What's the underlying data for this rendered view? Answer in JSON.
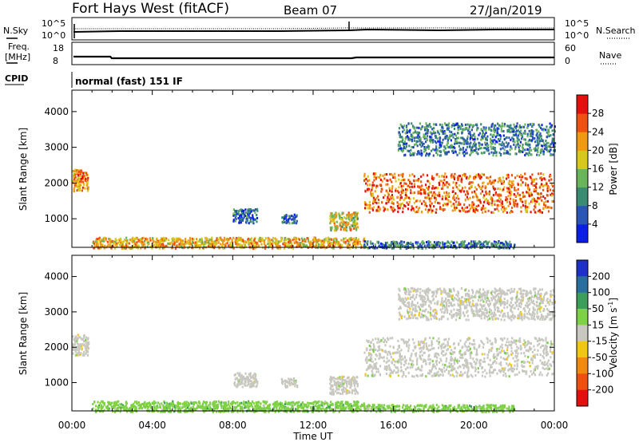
{
  "header": {
    "station": "Fort Hays West (fitACF)",
    "beam": "Beam 07",
    "date": "27/Jan/2019"
  },
  "noise_panel": {
    "left_label": "N.Sky",
    "right_label": "N.Search",
    "ticks": [
      "10^5",
      "10^0"
    ]
  },
  "freq_panel": {
    "left_label_1": "Freq.",
    "left_label_2": "[MHz]",
    "left_ticks": [
      "18",
      "8"
    ],
    "right_label": "Nave",
    "right_ticks": [
      "60",
      "0"
    ]
  },
  "cpid": {
    "label": "CPID",
    "mode": "normal (fast) 151 IF"
  },
  "chart_data": [
    {
      "type": "heatmap",
      "name": "power",
      "ylabel": "Slant Range [km]",
      "xlabel": "Time UT",
      "x_ticks": [
        "00:00",
        "04:00",
        "08:00",
        "12:00",
        "16:00",
        "20:00",
        "00:00"
      ],
      "y_ticks": [
        1000,
        2000,
        3000,
        4000
      ],
      "ylim": [
        200,
        4600
      ],
      "xlim_hours": [
        0,
        24
      ],
      "colorbar_label": "Power [dB]",
      "colorbar_ticks": [
        4,
        8,
        12,
        16,
        20,
        24,
        28
      ],
      "colors": [
        "#0a1ee6",
        "#2b55b5",
        "#3b8a72",
        "#6ab45a",
        "#d7c81e",
        "#f09a14",
        "#ee5210",
        "#e60f0f"
      ],
      "regions": [
        {
          "t": [
            0.0,
            0.8
          ],
          "r": [
            1800,
            2400
          ],
          "level": 22
        },
        {
          "t": [
            8.0,
            9.2
          ],
          "r": [
            900,
            1300
          ],
          "level": 8
        },
        {
          "t": [
            10.4,
            11.2
          ],
          "r": [
            900,
            1150
          ],
          "level": 8
        },
        {
          "t": [
            12.8,
            14.2
          ],
          "r": [
            700,
            1200
          ],
          "level": 18
        },
        {
          "t": [
            14.5,
            23.9
          ],
          "r": [
            1200,
            2300
          ],
          "level": 24
        },
        {
          "t": [
            16.2,
            24.0
          ],
          "r": [
            2800,
            3700
          ],
          "level": 10
        },
        {
          "t": [
            1.0,
            14.5
          ],
          "r": [
            200,
            500
          ],
          "level": 20
        },
        {
          "t": [
            14.5,
            22.0
          ],
          "r": [
            200,
            400
          ],
          "level": 10
        }
      ]
    },
    {
      "type": "heatmap",
      "name": "velocity",
      "ylabel": "Slant Range [km]",
      "xlabel": "Time UT",
      "x_ticks": [
        "00:00",
        "04:00",
        "08:00",
        "12:00",
        "16:00",
        "20:00",
        "00:00"
      ],
      "y_ticks": [
        1000,
        2000,
        3000,
        4000
      ],
      "ylim": [
        200,
        4600
      ],
      "xlim_hours": [
        0,
        24
      ],
      "colorbar_label": "Velocity [m s",
      "colorbar_label_sup": "-1",
      "colorbar_label_end": "]",
      "colorbar_ticks": [
        200,
        100,
        50,
        15,
        -15,
        -50,
        -100,
        -200
      ],
      "colors": [
        "#1e30c8",
        "#2a6ea0",
        "#3c9e5a",
        "#7ed044",
        "#c8c8c0",
        "#f0c814",
        "#f08a10",
        "#ee5010",
        "#e60f0f"
      ],
      "regions": [
        {
          "t": [
            0.0,
            0.8
          ],
          "r": [
            1800,
            2400
          ],
          "level": 0
        },
        {
          "t": [
            8.0,
            9.2
          ],
          "r": [
            900,
            1300
          ],
          "level": 0
        },
        {
          "t": [
            10.4,
            11.2
          ],
          "r": [
            900,
            1150
          ],
          "level": 0
        },
        {
          "t": [
            12.8,
            14.2
          ],
          "r": [
            700,
            1200
          ],
          "level": 0
        },
        {
          "t": [
            14.5,
            23.9
          ],
          "r": [
            1200,
            2300
          ],
          "level": 0
        },
        {
          "t": [
            16.2,
            24.0
          ],
          "r": [
            2800,
            3700
          ],
          "level": 0
        },
        {
          "t": [
            1.0,
            14.5
          ],
          "r": [
            200,
            500
          ],
          "level": 40
        },
        {
          "t": [
            14.5,
            22.0
          ],
          "r": [
            200,
            400
          ],
          "level": 30
        }
      ]
    }
  ]
}
